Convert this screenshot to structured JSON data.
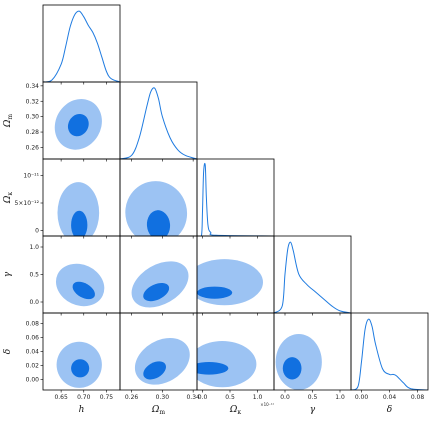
{
  "colors": {
    "outer": "#9cc3f3",
    "inner": "#1170e0",
    "line": "#1f7be0",
    "frame": "#000000"
  },
  "chart_data": {
    "type": "corner",
    "parameters": [
      {
        "key": "h",
        "label": "h",
        "range": [
          0.61,
          0.78
        ],
        "ticks": [
          0.65,
          0.7,
          0.75
        ],
        "tick_labels": [
          "0.65",
          "0.70",
          "0.75"
        ]
      },
      {
        "key": "om",
        "label": "Ω",
        "label_sub": "m",
        "range": [
          0.245,
          0.345
        ],
        "ticks": [
          0.26,
          0.28,
          0.3,
          0.32,
          0.34
        ],
        "tick_labels": [
          "0.26",
          "0.28",
          "0.30",
          "0.32",
          "0.34"
        ],
        "x_ticks": [
          0.26,
          0.3,
          0.34
        ],
        "x_tick_labels": [
          "0.26",
          "0.30",
          "0.34"
        ]
      },
      {
        "key": "ok",
        "label": "Ω",
        "label_sub": "κ",
        "range": [
          -0.1,
          1.3
        ],
        "ticks": [
          0,
          0.5,
          1.0
        ],
        "tick_labels": [
          "0.0",
          "0.5",
          "1.0"
        ],
        "exponent": "×10⁻¹¹",
        "y_ticks": [
          0,
          0.5,
          1.0
        ],
        "y_tick_labels": [
          "0",
          "5×10⁻¹²",
          "10⁻¹¹"
        ]
      },
      {
        "key": "gamma",
        "label": "γ",
        "range": [
          -0.2,
          1.2
        ],
        "ticks": [
          0.0,
          0.5,
          1.0
        ],
        "tick_labels": [
          "0.0",
          "0.5",
          "1.0"
        ]
      },
      {
        "key": "delta",
        "label": "δ",
        "range": [
          -0.015,
          0.095
        ],
        "ticks": [
          0.0,
          0.02,
          0.04,
          0.06,
          0.08
        ],
        "tick_labels": [
          "0.00",
          "0.02",
          "0.04",
          "0.06",
          "0.08"
        ],
        "x_ticks": [
          0.0,
          0.04,
          0.08
        ],
        "x_tick_labels": [
          "0.00",
          "0.04",
          "0.08"
        ]
      }
    ],
    "marginals": [
      {
        "param": "h",
        "x": [
          0.61,
          0.63,
          0.65,
          0.66,
          0.67,
          0.68,
          0.69,
          0.7,
          0.71,
          0.72,
          0.73,
          0.74,
          0.75,
          0.76,
          0.78
        ],
        "density": [
          0.0,
          0.03,
          0.25,
          0.5,
          0.78,
          0.95,
          1.0,
          0.92,
          0.8,
          0.7,
          0.55,
          0.35,
          0.15,
          0.05,
          0.0
        ]
      },
      {
        "param": "om",
        "x": [
          0.245,
          0.26,
          0.27,
          0.28,
          0.285,
          0.29,
          0.295,
          0.3,
          0.31,
          0.32,
          0.33,
          0.345
        ],
        "density": [
          0.0,
          0.05,
          0.3,
          0.75,
          0.95,
          1.0,
          0.85,
          0.6,
          0.3,
          0.13,
          0.05,
          0.0
        ]
      },
      {
        "param": "ok",
        "x": [
          -0.1,
          -0.02,
          0.0,
          0.02,
          0.05,
          0.07,
          0.1,
          0.15,
          0.25,
          1.3
        ],
        "density": [
          0.0,
          0.0,
          0.35,
          0.9,
          1.0,
          0.55,
          0.15,
          0.05,
          0.01,
          0.0
        ]
      },
      {
        "param": "gamma",
        "x": [
          -0.2,
          -0.05,
          0.0,
          0.05,
          0.1,
          0.15,
          0.25,
          0.4,
          0.55,
          0.7,
          0.85,
          1.0,
          1.2
        ],
        "density": [
          0.0,
          0.1,
          0.55,
          0.9,
          1.0,
          0.88,
          0.55,
          0.4,
          0.3,
          0.2,
          0.1,
          0.03,
          0.0
        ]
      },
      {
        "param": "delta",
        "x": [
          -0.015,
          -0.005,
          0.0,
          0.005,
          0.01,
          0.015,
          0.02,
          0.03,
          0.04,
          0.045,
          0.05,
          0.06,
          0.07,
          0.095
        ],
        "density": [
          0.0,
          0.05,
          0.4,
          0.85,
          1.0,
          0.9,
          0.65,
          0.3,
          0.22,
          0.22,
          0.2,
          0.1,
          0.02,
          0.0
        ]
      }
    ],
    "contours": [
      {
        "x": "h",
        "y": "om",
        "outer": {
          "cx": 0.688,
          "cy": 0.29,
          "rx": 0.05,
          "ry": 0.034,
          "angle": 30
        },
        "inner": {
          "cx": 0.688,
          "cy": 0.289,
          "rx": 0.022,
          "ry": 0.015,
          "angle": 30
        }
      },
      {
        "x": "h",
        "y": "ok",
        "outer": {
          "cx": 0.688,
          "cy": 0.32,
          "rx": 0.046,
          "ry": 0.56,
          "angle": 0
        },
        "inner": {
          "cx": 0.69,
          "cy": 0.1,
          "rx": 0.018,
          "ry": 0.26,
          "angle": 0
        }
      },
      {
        "x": "h",
        "y": "gamma",
        "outer": {
          "cx": 0.692,
          "cy": 0.31,
          "rx": 0.055,
          "ry": 0.37,
          "angle": 25
        },
        "inner": {
          "cx": 0.7,
          "cy": 0.21,
          "rx": 0.027,
          "ry": 0.13,
          "angle": 30
        }
      },
      {
        "x": "h",
        "y": "delta",
        "outer": {
          "cx": 0.69,
          "cy": 0.021,
          "rx": 0.05,
          "ry": 0.033,
          "angle": 0
        },
        "inner": {
          "cx": 0.692,
          "cy": 0.016,
          "rx": 0.02,
          "ry": 0.013,
          "angle": 0
        }
      },
      {
        "x": "om",
        "y": "ok",
        "outer": {
          "cx": 0.292,
          "cy": 0.32,
          "rx": 0.04,
          "ry": 0.58,
          "angle": -15
        },
        "inner": {
          "cx": 0.295,
          "cy": 0.1,
          "rx": 0.015,
          "ry": 0.27,
          "angle": -5
        }
      },
      {
        "x": "om",
        "y": "gamma",
        "outer": {
          "cx": 0.297,
          "cy": 0.32,
          "rx": 0.04,
          "ry": 0.36,
          "angle": -30
        },
        "inner": {
          "cx": 0.292,
          "cy": 0.18,
          "rx": 0.018,
          "ry": 0.14,
          "angle": -25
        }
      },
      {
        "x": "om",
        "y": "delta",
        "outer": {
          "cx": 0.3,
          "cy": 0.026,
          "rx": 0.038,
          "ry": 0.03,
          "angle": -30
        },
        "inner": {
          "cx": 0.29,
          "cy": 0.013,
          "rx": 0.016,
          "ry": 0.011,
          "angle": -30
        }
      },
      {
        "x": "ok",
        "y": "gamma",
        "outer": {
          "cx": 0.4,
          "cy": 0.36,
          "rx": 0.7,
          "ry": 0.42,
          "angle": 0
        },
        "inner": {
          "cx": 0.22,
          "cy": 0.17,
          "rx": 0.32,
          "ry": 0.11,
          "angle": 0
        }
      },
      {
        "x": "ok",
        "y": "delta",
        "outer": {
          "cx": 0.36,
          "cy": 0.022,
          "rx": 0.62,
          "ry": 0.033,
          "angle": 0
        },
        "inner": {
          "cx": 0.12,
          "cy": 0.016,
          "rx": 0.35,
          "ry": 0.009,
          "angle": 0
        }
      },
      {
        "x": "gamma",
        "y": "delta",
        "outer": {
          "cx": 0.25,
          "cy": 0.025,
          "rx": 0.42,
          "ry": 0.04,
          "angle": 0
        },
        "inner": {
          "cx": 0.13,
          "cy": 0.016,
          "rx": 0.17,
          "ry": 0.016,
          "angle": 0
        }
      }
    ]
  }
}
